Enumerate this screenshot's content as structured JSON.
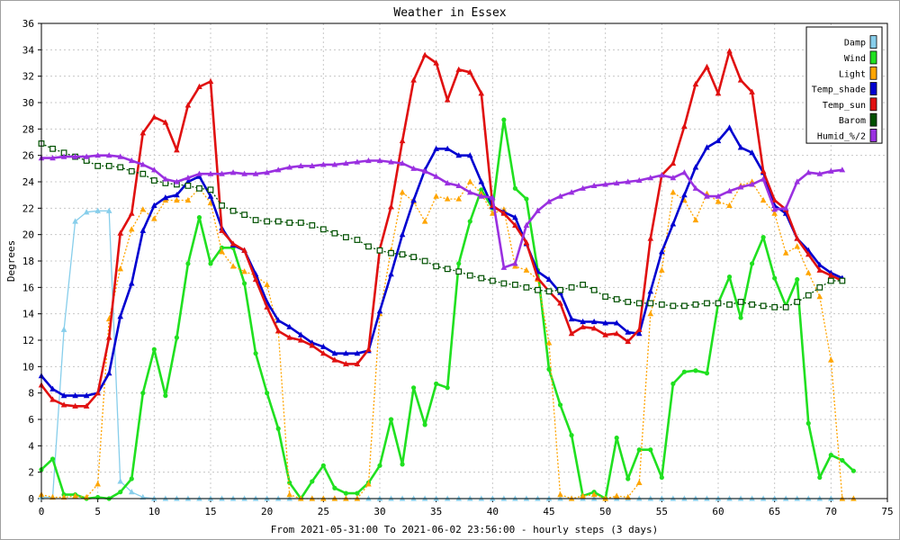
{
  "chart_data": {
    "type": "line",
    "title": "Weather in Essex",
    "xlabel": "From 2021-05-31:00 To 2021-06-02 23:56:00 - hourly steps (3 days)",
    "ylabel": "Degrees",
    "xlim": [
      0,
      75
    ],
    "ylim": [
      0,
      36
    ],
    "xticks": [
      0,
      5,
      10,
      15,
      20,
      25,
      30,
      35,
      40,
      45,
      50,
      55,
      60,
      65,
      70,
      75
    ],
    "yticks": [
      0,
      2,
      4,
      6,
      8,
      10,
      12,
      14,
      16,
      18,
      20,
      22,
      24,
      26,
      28,
      30,
      32,
      34,
      36
    ],
    "grid": true,
    "legend_position": "top-right",
    "series": [
      {
        "name": "Damp",
        "color": "#87ceeb",
        "marker": "triangle",
        "dash": false,
        "thin": true,
        "values": [
          0.1,
          0.1,
          12.8,
          21,
          21.7,
          21.8,
          21.8,
          1.3,
          0.5,
          0.1,
          0,
          0,
          0,
          0,
          0,
          0,
          0,
          0,
          0,
          0,
          0,
          0,
          0,
          0,
          0,
          0,
          0,
          0,
          0,
          0,
          0,
          0,
          0,
          0,
          0,
          0,
          0,
          0,
          0,
          0,
          0,
          0,
          0,
          0,
          0,
          0,
          0,
          0,
          0,
          0,
          0,
          0,
          0,
          0,
          0,
          0,
          0,
          0,
          0,
          0,
          0,
          0,
          0,
          0,
          0,
          0,
          0,
          0,
          0,
          0,
          0,
          0
        ]
      },
      {
        "name": "Wind",
        "color": "#20e020",
        "marker": "circle",
        "dash": false,
        "thin": false,
        "values": [
          2.2,
          3,
          0.3,
          0.3,
          0,
          0.1,
          0,
          0.5,
          1.5,
          8,
          11.3,
          7.8,
          12.2,
          17.8,
          21.3,
          17.8,
          19,
          19,
          16.3,
          11,
          8,
          5.3,
          1.2,
          0,
          1.3,
          2.5,
          0.8,
          0.4,
          0.4,
          1.2,
          2.5,
          6,
          2.6,
          8.4,
          5.6,
          8.7,
          8.4,
          17.8,
          21,
          23.4,
          22,
          28.7,
          23.5,
          22.7,
          17.3,
          9.8,
          7.1,
          4.8,
          0.2,
          0.5,
          0,
          4.6,
          1.5,
          3.7,
          3.7,
          1.6,
          8.7,
          9.6,
          9.7,
          9.5,
          14.8,
          16.8,
          13.7,
          17.8,
          19.8,
          16.7,
          14.6,
          16.6,
          5.7,
          1.6,
          3.3,
          2.9,
          2.1
        ]
      },
      {
        "name": "Light",
        "color": "#ffa500",
        "marker": "triangle",
        "dash": true,
        "thin": true,
        "values": [
          0.3,
          0.1,
          0.1,
          0.2,
          0.1,
          1.1,
          13.6,
          17.4,
          20.4,
          21.9,
          21.2,
          22.6,
          22.6,
          22.6,
          23.5,
          22.4,
          18.7,
          17.6,
          17.2,
          16.9,
          16.2,
          12.7,
          0.3,
          0,
          0,
          0,
          0,
          0,
          0,
          1.1,
          14,
          18.8,
          23.2,
          22.5,
          21,
          22.9,
          22.7,
          22.7,
          24,
          23.1,
          21.6,
          21.9,
          17.6,
          17.3,
          16.6,
          11.8,
          0.3,
          0,
          0.2,
          0.3,
          0,
          0.2,
          0.1,
          1.2,
          14,
          17.3,
          23.2,
          22.6,
          21.1,
          23.1,
          22.5,
          22.2,
          23.7,
          24,
          22.6,
          21.6,
          18.6,
          19.1,
          17.1,
          15.3,
          10.5,
          0,
          0
        ]
      },
      {
        "name": "Temp_shade",
        "color": "#0000d0",
        "marker": "triangle",
        "dash": false,
        "thin": false,
        "values": [
          9.3,
          8.3,
          7.8,
          7.8,
          7.8,
          8,
          9.5,
          13.8,
          16.3,
          20.3,
          22.2,
          22.8,
          23,
          24,
          24.4,
          22.9,
          20.5,
          19.2,
          18.8,
          17,
          14.9,
          13.5,
          13,
          12.4,
          11.8,
          11.5,
          11,
          11,
          11,
          11.2,
          14.2,
          17,
          20,
          22.6,
          24.9,
          26.5,
          26.5,
          26,
          26,
          24,
          22.1,
          21.7,
          21.3,
          19.3,
          17.2,
          16.6,
          15.6,
          13.6,
          13.4,
          13.4,
          13.3,
          13.3,
          12.6,
          12.5,
          15.7,
          18.7,
          20.8,
          23,
          25.1,
          26.6,
          27.1,
          28.1,
          26.6,
          26.2,
          24.7,
          22.2,
          21.6,
          19.7,
          18.8,
          17.7,
          17.1,
          16.7
        ]
      },
      {
        "name": "Temp_sun",
        "color": "#e01010",
        "marker": "triangle",
        "dash": false,
        "thin": false,
        "values": [
          8.6,
          7.5,
          7.1,
          7,
          7,
          8,
          12.2,
          20.1,
          21.6,
          27.7,
          28.9,
          28.5,
          26.4,
          29.8,
          31.2,
          31.6,
          20.3,
          19.3,
          18.8,
          16.6,
          14.5,
          12.7,
          12.2,
          12,
          11.6,
          11,
          10.5,
          10.2,
          10.2,
          11.3,
          18.9,
          22.1,
          27.1,
          31.7,
          33.6,
          33,
          30.2,
          32.5,
          32.3,
          30.7,
          22.2,
          21.6,
          20.7,
          19.4,
          16.7,
          15.7,
          14.8,
          12.5,
          13,
          12.9,
          12.4,
          12.5,
          11.9,
          12.8,
          19.7,
          24.5,
          25.4,
          28.2,
          31.4,
          32.7,
          30.7,
          33.9,
          31.7,
          30.8,
          24.8,
          22.6,
          21.9,
          19.7,
          18.5,
          17.3,
          16.9,
          16.5
        ]
      },
      {
        "name": "Barom",
        "color": "#005000",
        "marker": "square",
        "dash": true,
        "thin": true,
        "values": [
          26.9,
          26.5,
          26.2,
          25.9,
          25.6,
          25.2,
          25.2,
          25.1,
          24.8,
          24.6,
          24.1,
          23.9,
          23.8,
          23.7,
          23.5,
          23.4,
          22.2,
          21.8,
          21.5,
          21.1,
          21,
          21,
          20.9,
          20.9,
          20.7,
          20.4,
          20.1,
          19.8,
          19.6,
          19.1,
          18.8,
          18.6,
          18.5,
          18.3,
          18,
          17.6,
          17.4,
          17.2,
          16.9,
          16.7,
          16.5,
          16.3,
          16.2,
          16,
          15.8,
          15.7,
          15.8,
          16,
          16.2,
          15.8,
          15.3,
          15.1,
          14.9,
          14.8,
          14.8,
          14.7,
          14.6,
          14.6,
          14.7,
          14.8,
          14.8,
          14.7,
          14.9,
          14.7,
          14.6,
          14.5,
          14.5,
          14.9,
          15.4,
          16,
          16.5,
          16.5
        ]
      },
      {
        "name": "Humid_%/2",
        "color": "#9a30e0",
        "marker": "triangle",
        "dash": false,
        "thin": false,
        "values": [
          25.8,
          25.8,
          25.9,
          25.9,
          25.9,
          26,
          26,
          25.9,
          25.6,
          25.3,
          24.9,
          24.2,
          24,
          24.3,
          24.6,
          24.6,
          24.6,
          24.7,
          24.6,
          24.6,
          24.7,
          24.9,
          25.1,
          25.2,
          25.2,
          25.3,
          25.3,
          25.4,
          25.5,
          25.6,
          25.6,
          25.5,
          25.4,
          25,
          24.8,
          24.4,
          23.9,
          23.7,
          23.2,
          22.9,
          22.8,
          17.5,
          17.8,
          20.7,
          21.8,
          22.5,
          22.9,
          23.2,
          23.5,
          23.7,
          23.8,
          23.9,
          24,
          24.1,
          24.3,
          24.5,
          24.3,
          24.7,
          23.5,
          22.9,
          22.9,
          23.3,
          23.6,
          23.8,
          24.2,
          21.9,
          22,
          24,
          24.7,
          24.6,
          24.8,
          24.9
        ]
      }
    ]
  }
}
